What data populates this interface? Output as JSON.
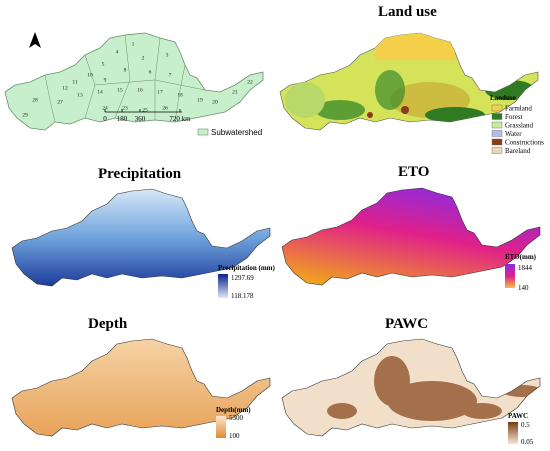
{
  "subwatershed_map": {
    "legend": "Subwatershed",
    "scale": [
      "0",
      "180",
      "360",
      "720 km"
    ],
    "labels": [
      "1",
      "2",
      "3",
      "4",
      "5",
      "6",
      "7",
      "8",
      "9",
      "10",
      "11",
      "12",
      "13",
      "14",
      "15",
      "16",
      "17",
      "18",
      "19",
      "20",
      "21",
      "22",
      "23",
      "24",
      "25",
      "26",
      "27",
      "28",
      "29"
    ]
  },
  "land_use": {
    "title": "Land use",
    "legend_title": "Landuse",
    "classes": [
      "Farmland",
      "Forest",
      "Grassland",
      "Water",
      "Constructions",
      "Bareland"
    ]
  },
  "precipitation": {
    "title": "Precipitation",
    "legend_title": "Precipitation (mm)",
    "max": "1297.69",
    "min": "118.178"
  },
  "eto": {
    "title": "ETO",
    "legend_title": "ETO(mm)",
    "max": "1844",
    "min": "140"
  },
  "depth": {
    "title": "Depth",
    "legend_title": "Depth(mm)",
    "max": "5300",
    "min": "100"
  },
  "pawc": {
    "title": "PAWC",
    "legend_title": "PAWC",
    "max": "0.5",
    "min": "0.05"
  }
}
